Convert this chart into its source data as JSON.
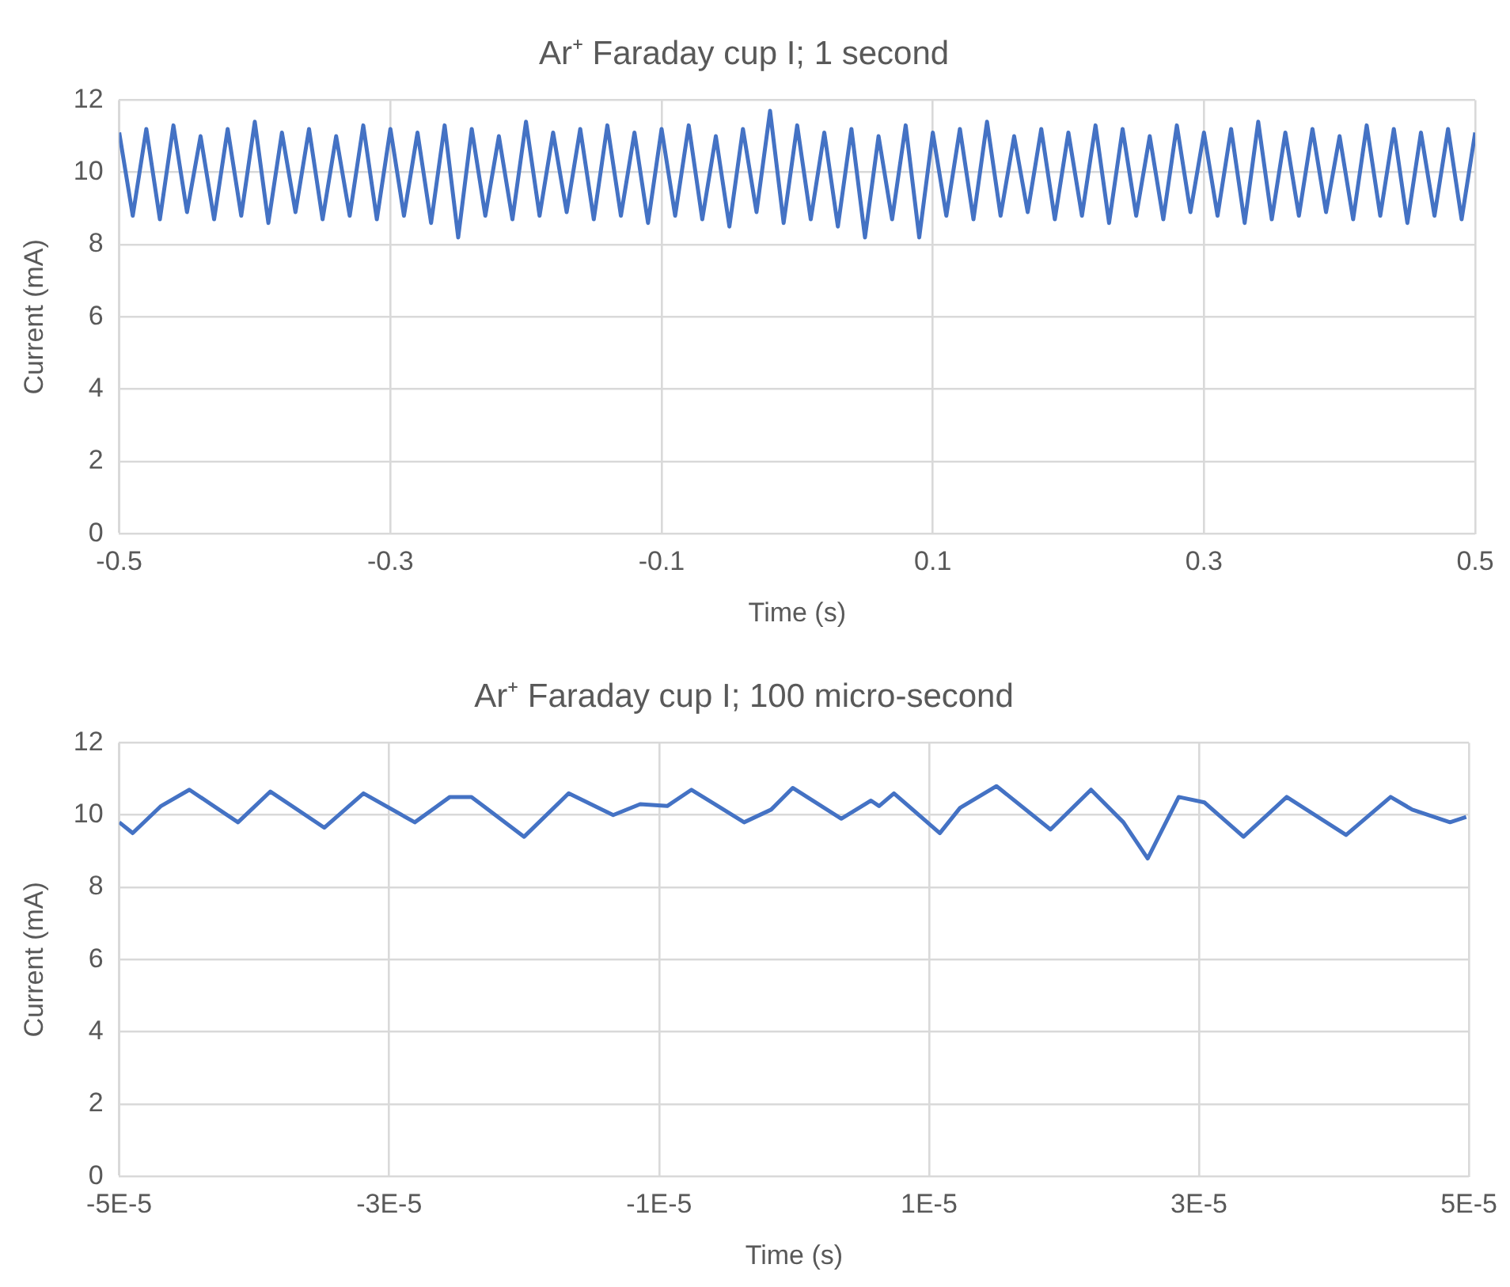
{
  "chart_data": [
    {
      "type": "line",
      "title": "Ar⁺ Faraday cup I; 1 second",
      "xlabel": "Time (s)",
      "ylabel": "Current (mA)",
      "grid": true,
      "legend": false,
      "marker": "none",
      "xlim": [
        -0.5,
        0.5
      ],
      "xticks": [
        -0.5,
        -0.3,
        -0.1,
        0.1,
        0.3,
        0.5
      ],
      "ylim": [
        0,
        12
      ],
      "yticks": [
        0,
        2,
        4,
        6,
        8,
        10,
        12
      ],
      "x": [
        -0.5,
        -0.49,
        -0.48,
        -0.47,
        -0.46,
        -0.45,
        -0.44,
        -0.43,
        -0.42,
        -0.41,
        -0.4,
        -0.39,
        -0.38,
        -0.37,
        -0.36,
        -0.35,
        -0.34,
        -0.33,
        -0.32,
        -0.31,
        -0.3,
        -0.29,
        -0.28,
        -0.27,
        -0.26,
        -0.25,
        -0.24,
        -0.23,
        -0.22,
        -0.21,
        -0.2,
        -0.19,
        -0.18,
        -0.17,
        -0.16,
        -0.15,
        -0.14,
        -0.13,
        -0.12,
        -0.11,
        -0.1,
        -0.09,
        -0.08,
        -0.07,
        -0.06,
        -0.05,
        -0.04,
        -0.03,
        -0.02,
        -0.01,
        0,
        0.01,
        0.02,
        0.03,
        0.04,
        0.05,
        0.06,
        0.07,
        0.08,
        0.09,
        0.1,
        0.11,
        0.12,
        0.13,
        0.14,
        0.15,
        0.16,
        0.17,
        0.18,
        0.19,
        0.2,
        0.21,
        0.22,
        0.23,
        0.24,
        0.25,
        0.26,
        0.27,
        0.28,
        0.29,
        0.3,
        0.31,
        0.32,
        0.33,
        0.34,
        0.35,
        0.36,
        0.37,
        0.38,
        0.39,
        0.4,
        0.41,
        0.42,
        0.43,
        0.44,
        0.45,
        0.46,
        0.47,
        0.48,
        0.49,
        0.5
      ],
      "series": [
        {
          "color": "#4472c4",
          "values": [
            11.1,
            8.8,
            11.2,
            8.7,
            11.3,
            8.9,
            11.0,
            8.7,
            11.2,
            8.8,
            11.4,
            8.6,
            11.1,
            8.9,
            11.2,
            8.7,
            11.0,
            8.8,
            11.3,
            8.7,
            11.2,
            8.8,
            11.1,
            8.6,
            11.3,
            8.2,
            11.2,
            8.8,
            11.0,
            8.7,
            11.4,
            8.8,
            11.1,
            8.9,
            11.2,
            8.7,
            11.3,
            8.8,
            11.1,
            8.6,
            11.2,
            8.8,
            11.3,
            8.7,
            11.0,
            8.5,
            11.2,
            8.9,
            11.7,
            8.6,
            11.3,
            8.7,
            11.1,
            8.5,
            11.2,
            8.2,
            11.0,
            8.7,
            11.3,
            8.2,
            11.1,
            8.8,
            11.2,
            8.7,
            11.4,
            8.8,
            11.0,
            8.9,
            11.2,
            8.7,
            11.1,
            8.8,
            11.3,
            8.6,
            11.2,
            8.8,
            11.0,
            8.7,
            11.3,
            8.9,
            11.1,
            8.8,
            11.2,
            8.6,
            11.4,
            8.7,
            11.1,
            8.8,
            11.2,
            8.9,
            11.0,
            8.7,
            11.3,
            8.8,
            11.2,
            8.6,
            11.1,
            8.8,
            11.2,
            8.7,
            11.1
          ]
        }
      ]
    },
    {
      "type": "line",
      "title": "Ar⁺ Faraday cup I; 100 micro-second",
      "xlabel": "Time (s)",
      "ylabel": "Current (mA)",
      "grid": true,
      "legend": false,
      "marker": "none",
      "xlim": [
        -5e-05,
        5e-05
      ],
      "xticks": [
        {
          "value": -5e-05,
          "label": "-5E-5"
        },
        {
          "value": -3e-05,
          "label": "-3E-5"
        },
        {
          "value": -1e-05,
          "label": "-1E-5"
        },
        {
          "value": 1e-05,
          "label": "1E-5"
        },
        {
          "value": 3e-05,
          "label": "3E-5"
        },
        {
          "value": 5e-05,
          "label": "5E-5"
        }
      ],
      "ylim": [
        0,
        12
      ],
      "yticks": [
        0,
        2,
        4,
        6,
        8,
        10,
        12
      ],
      "x": [
        -5e-05,
        -4.9e-05,
        -4.69e-05,
        -4.48e-05,
        -4.12e-05,
        -3.88e-05,
        -3.48e-05,
        -3.19e-05,
        -2.81e-05,
        -2.55e-05,
        -2.39e-05,
        -2e-05,
        -1.67e-05,
        -1.34e-05,
        -1.14e-05,
        -9.4e-06,
        -7.6e-06,
        -3.7e-06,
        -1.7e-06,
        -1e-07,
        3.5e-06,
        5.7e-06,
        6.3e-06,
        7.4e-06,
        1.08e-05,
        1.23e-05,
        1.5e-05,
        1.9e-05,
        2.2e-05,
        2.44e-05,
        2.62e-05,
        2.85e-05,
        3.04e-05,
        3.33e-05,
        3.65e-05,
        4.09e-05,
        4.42e-05,
        4.58e-05,
        4.86e-05,
        4.98e-05
      ],
      "series": [
        {
          "color": "#4472c4",
          "values": [
            9.8,
            9.5,
            10.25,
            10.7,
            9.8,
            10.65,
            9.65,
            10.6,
            9.8,
            10.5,
            10.5,
            9.4,
            10.6,
            10.0,
            10.3,
            10.25,
            10.7,
            9.8,
            10.15,
            10.75,
            9.9,
            10.4,
            10.25,
            10.6,
            9.5,
            10.2,
            10.8,
            9.6,
            10.7,
            9.8,
            8.8,
            10.5,
            10.35,
            9.4,
            10.5,
            9.45,
            10.5,
            10.15,
            9.8,
            9.95
          ]
        }
      ]
    }
  ]
}
